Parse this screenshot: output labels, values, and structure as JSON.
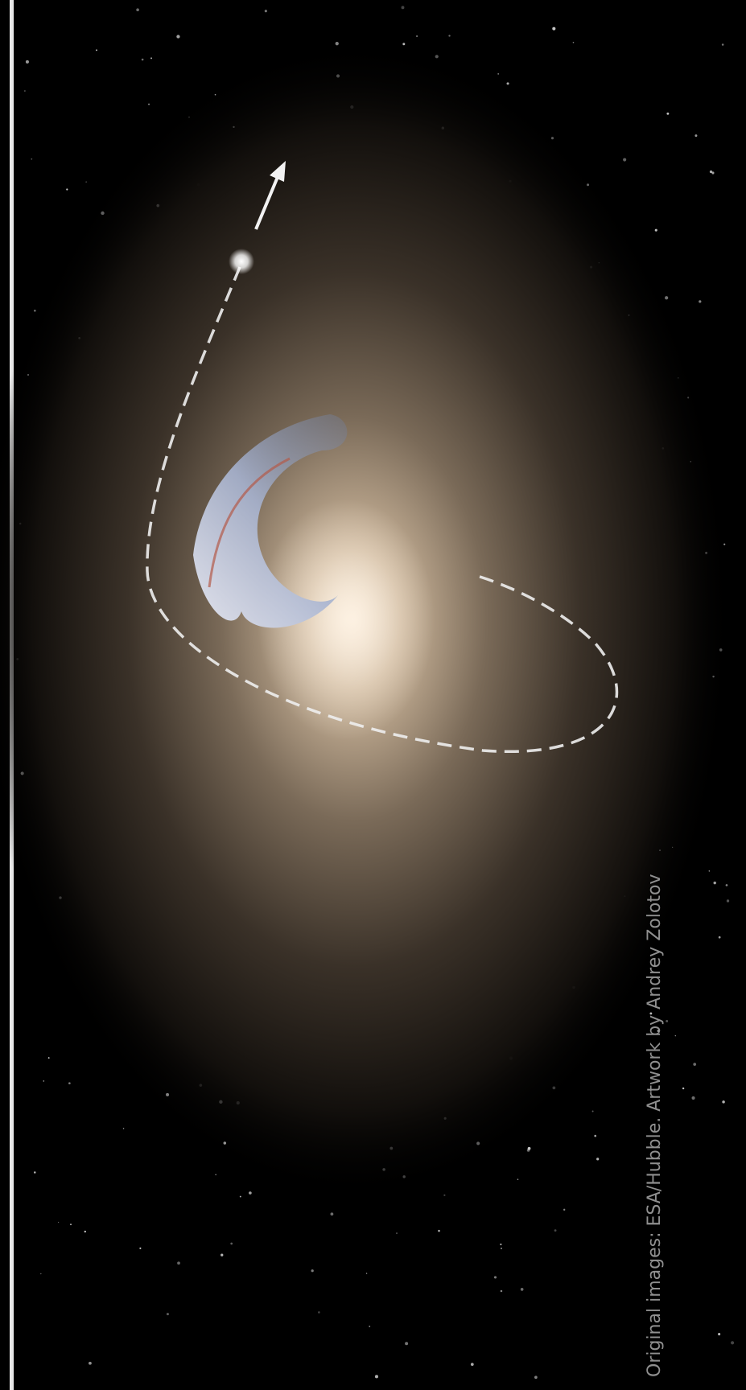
{
  "credit": "Original images: ESA/Hubble. Artwork by Andrey Zolotov"
}
